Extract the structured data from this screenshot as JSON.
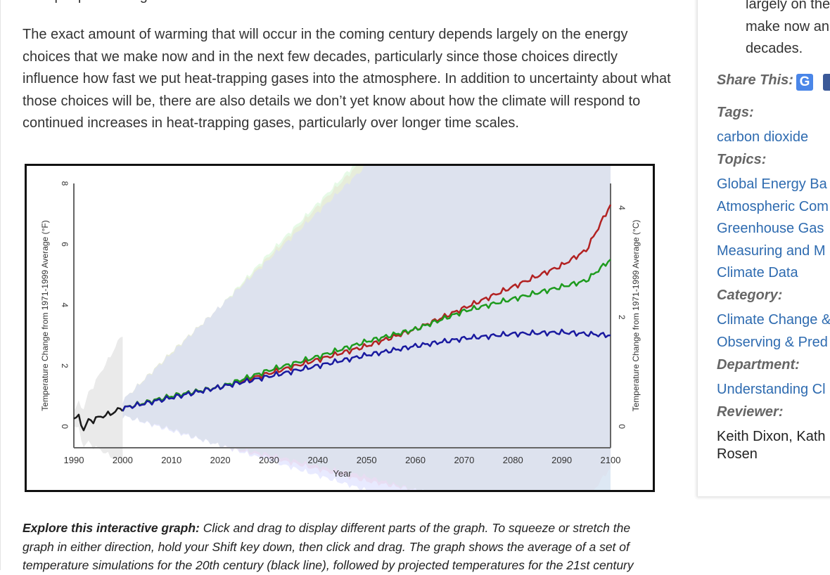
{
  "article": {
    "para_top": "from people burning coal and other fossil fuels.",
    "para_main": "The exact amount of warming that will occur in the coming century depends largely on the energy choices that we make now and in the next few decades, particularly since those choices directly influence how fast we put heat-trapping gases into the atmosphere. In addition to uncertainty about what those choices will be, there are also details we don’t yet know about how the climate will respond to continued increases in heat-trapping gases, particularly over longer time scales.",
    "caption_lead": "Explore this interactive graph:",
    "caption_rest": " Click and drag to display different parts of the graph. To squeeze or stretch the graph in either direction, hold your Shift key down, then click and drag. The graph shows the average of a set of temperature simulations for the 20th century (black line), followed by projected temperatures for the 21st century"
  },
  "chart_data": {
    "type": "line",
    "xlabel": "Year",
    "ylabel": "Temperature Change from 1971-1999 Average (°F)",
    "ylabel_right": "Temperature Change from 1971-1999 Average (°C)",
    "xlim": [
      1990,
      2100
    ],
    "ylim": [
      -0.7,
      8.0
    ],
    "x_ticks": [
      1990,
      2000,
      2010,
      2020,
      2030,
      2040,
      2050,
      2060,
      2070,
      2080,
      2090,
      2100
    ],
    "y_ticks_left": [
      0,
      2,
      4,
      6,
      8
    ],
    "y_ticks_right": [
      0,
      2,
      4
    ],
    "grid": false,
    "series": [
      {
        "color": "#1a1a1a",
        "band": "#d9d9d9",
        "x": [
          1990,
          1991,
          1992,
          1993,
          1994,
          1995,
          1996,
          1997,
          1998,
          1999,
          2000
        ],
        "y": [
          0.3,
          0.3,
          -0.1,
          0.2,
          0.2,
          0.3,
          0.35,
          0.4,
          0.45,
          0.55,
          0.6
        ]
      },
      {
        "color": "#b22222",
        "band": "#ffcccc",
        "x": [
          2000,
          2010,
          2020,
          2030,
          2040,
          2050,
          2060,
          2070,
          2080,
          2090,
          2095,
          2100
        ],
        "y": [
          0.6,
          1.0,
          1.3,
          1.75,
          2.2,
          2.65,
          3.2,
          3.9,
          4.6,
          5.3,
          5.8,
          7.3
        ]
      },
      {
        "color": "#1e9b1e",
        "band": "#d4f5d4",
        "x": [
          2000,
          2010,
          2020,
          2030,
          2040,
          2050,
          2060,
          2070,
          2080,
          2090,
          2095,
          2100
        ],
        "y": [
          0.6,
          1.0,
          1.3,
          1.85,
          2.3,
          2.8,
          3.2,
          3.8,
          4.2,
          4.6,
          4.8,
          5.5
        ]
      },
      {
        "color": "#1a1aa0",
        "band": "#d6d8ff",
        "x": [
          2000,
          2010,
          2020,
          2030,
          2040,
          2050,
          2060,
          2070,
          2080,
          2090,
          2095,
          2100
        ],
        "y": [
          0.6,
          0.95,
          1.3,
          1.65,
          2.0,
          2.35,
          2.65,
          2.9,
          3.05,
          3.1,
          3.05,
          3.0
        ]
      }
    ]
  },
  "sidebar": {
    "quote_lines": [
      "largely on the",
      "make now an",
      "decades."
    ],
    "share_label": "Share This:",
    "share_icons": [
      "google-icon",
      "facebook-icon"
    ],
    "tags_label": "Tags:",
    "tags": [
      "carbon dioxide"
    ],
    "topics_label": "Topics:",
    "topics": [
      "Global Energy Ba",
      "Atmospheric Com",
      "Greenhouse Gas",
      "Measuring and M",
      "Climate Data"
    ],
    "category_label": "Category:",
    "categories": [
      "Climate Change &",
      "Observing & Pred"
    ],
    "department_label": "Department:",
    "departments": [
      "Understanding Cl"
    ],
    "reviewer_label": "Reviewer:",
    "reviewer": "Keith Dixon, Kath Rosen"
  }
}
